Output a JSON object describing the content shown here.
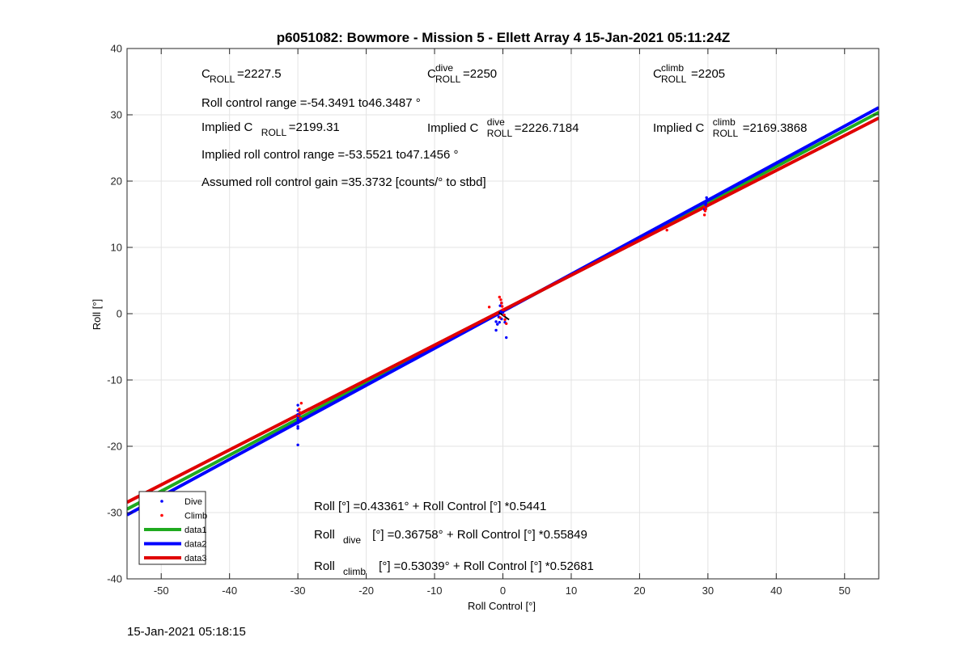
{
  "chart_data": {
    "type": "scatter",
    "title": "p6051082: Bowmore - Mission 5 - Ellett Array 4 15-Jan-2021 05:11:24Z",
    "xlabel": "Roll Control [°]",
    "ylabel": "Roll [°]",
    "xlim": [
      -55,
      55
    ],
    "ylim": [
      -40,
      40
    ],
    "xticks": [
      -50,
      -40,
      -30,
      -20,
      -10,
      0,
      10,
      20,
      30,
      40,
      50
    ],
    "yticks": [
      -40,
      -30,
      -20,
      -10,
      0,
      10,
      20,
      30,
      40
    ],
    "grid": true,
    "legend_position": "bottom-left",
    "legend": [
      {
        "label": "Dive",
        "kind": "marker",
        "color": "#0000ff"
      },
      {
        "label": "Climb",
        "kind": "marker",
        "color": "#ff0000"
      },
      {
        "label": "data1",
        "kind": "line",
        "color": "#1faa1f"
      },
      {
        "label": "data2",
        "kind": "line",
        "color": "#0000ff"
      },
      {
        "label": "data3",
        "kind": "line",
        "color": "#e00000"
      }
    ],
    "series": [
      {
        "name": "Dive",
        "kind": "scatter",
        "color": "#0000ff",
        "points": [
          [
            -30,
            -13.8
          ],
          [
            -30,
            -14.6
          ],
          [
            -30,
            -15.2
          ],
          [
            -30,
            -15.6
          ],
          [
            -30,
            -16
          ],
          [
            -30,
            -16.5
          ],
          [
            -30,
            -17
          ],
          [
            -30,
            -17.3
          ],
          [
            -30,
            -19.8
          ],
          [
            -29.8,
            -15.3
          ],
          [
            -29.9,
            -16.2
          ],
          [
            -1,
            -1.2
          ],
          [
            -1,
            -2.5
          ],
          [
            -0.8,
            -1.6
          ],
          [
            -0.6,
            -0.5
          ],
          [
            -0.5,
            -1.3
          ],
          [
            -0.3,
            0.3
          ],
          [
            -0.2,
            -0.8
          ],
          [
            -0.4,
            1.2
          ],
          [
            0.5,
            -3.6
          ],
          [
            0.3,
            -1.3
          ],
          [
            0,
            0.2
          ],
          [
            -0.2,
            1.6
          ],
          [
            29.5,
            15.7
          ],
          [
            29.6,
            16.3
          ],
          [
            29.7,
            16.6
          ],
          [
            29.8,
            17.1
          ],
          [
            29.8,
            17.5
          ],
          [
            29.6,
            15.9
          ]
        ]
      },
      {
        "name": "Climb",
        "kind": "scatter",
        "color": "#ff0000",
        "points": [
          [
            -29.5,
            -13.5
          ],
          [
            -29.8,
            -14.4
          ],
          [
            -29.7,
            -14.9
          ],
          [
            -29.9,
            -15.4
          ],
          [
            -29.6,
            -15.8
          ],
          [
            -2,
            1
          ],
          [
            -0.5,
            2.5
          ],
          [
            -0.3,
            2.1
          ],
          [
            -0.2,
            1.6
          ],
          [
            -0.1,
            1.1
          ],
          [
            0,
            0.6
          ],
          [
            0.2,
            -0.2
          ],
          [
            -0.4,
            -0.6
          ],
          [
            0.5,
            -1.5
          ],
          [
            0.3,
            -0.9
          ],
          [
            24,
            12.6
          ],
          [
            29.5,
            14.9
          ],
          [
            29.6,
            15.5
          ],
          [
            29.5,
            16.1
          ],
          [
            29.7,
            15.8
          ]
        ]
      },
      {
        "name": "data1",
        "kind": "line",
        "color": "#1faa1f",
        "width": 4,
        "x": [
          -55,
          55
        ],
        "y": [
          -29.49,
          30.36
        ]
      },
      {
        "name": "data2",
        "kind": "line",
        "color": "#0000ff",
        "width": 4,
        "x": [
          -55,
          55
        ],
        "y": [
          -30.35,
          31.08
        ]
      },
      {
        "name": "data3",
        "kind": "line",
        "color": "#e00000",
        "width": 4,
        "x": [
          -55,
          55
        ],
        "y": [
          -28.45,
          29.51
        ]
      }
    ]
  },
  "annotations": {
    "c_roll": {
      "main": "C",
      "sub": "ROLL",
      "rest": "=2227.5"
    },
    "c_roll_dive": {
      "main": "C",
      "sup": "dive",
      "sub": "ROLL",
      "rest": "=2250"
    },
    "c_roll_climb": {
      "main": "C",
      "sup": "climb",
      "sub": "ROLL",
      "rest": "=2205"
    },
    "roll_range": "Roll control range =-54.3491 to46.3487 °",
    "implied_c_roll": {
      "pre": "Implied C",
      "sub": "ROLL",
      "rest": "=2199.31"
    },
    "implied_c_roll_dive": {
      "pre": "Implied C",
      "sup": "dive",
      "sub": "ROLL",
      "rest": "=2226.7184"
    },
    "implied_c_roll_climb": {
      "pre": "Implied C",
      "sup": "climb",
      "sub": "ROLL",
      "rest": "=2169.3868"
    },
    "implied_range": "Implied roll control range =-53.5521 to47.1456 °",
    "gain": "Assumed roll control gain =35.3732 [counts/° to stbd]",
    "fit_all": {
      "pre": "Roll [°] =0.43361° + Roll Control [°] *0.5441"
    },
    "fit_dive": {
      "pre": "Roll",
      "sub": "dive",
      "rest": " [°] =0.36758° + Roll Control [°] *0.55849"
    },
    "fit_climb": {
      "pre": "Roll",
      "sub": "climb",
      "rest": " [°] =0.53039° + Roll Control [°] *0.52681"
    }
  },
  "footer": {
    "timestamp": "15-Jan-2021 05:18:15"
  }
}
